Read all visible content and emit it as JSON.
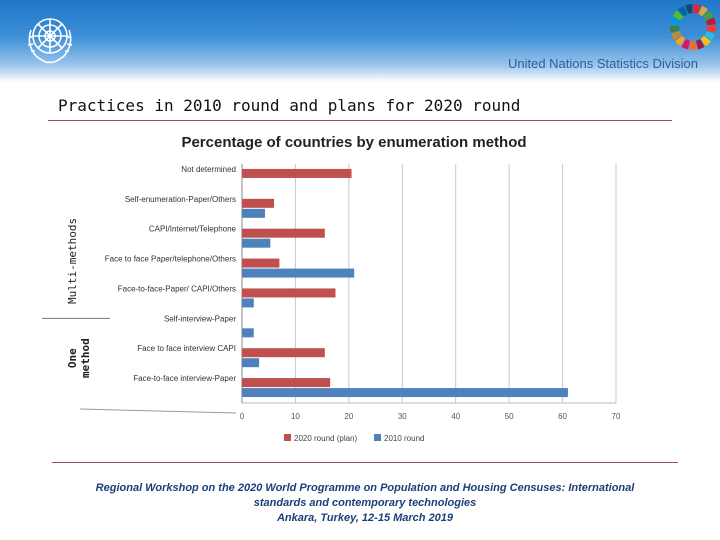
{
  "header": {
    "division": "United Nations Statistics Division",
    "un_logo": "un-emblem",
    "sdg_logo": "sdg-wheel",
    "sdg_colors": [
      "#e5243b",
      "#dda63a",
      "#4c9f38",
      "#c5192d",
      "#ff3a21",
      "#26bde2",
      "#fcc30b",
      "#a21942",
      "#fd6925",
      "#dd1367",
      "#fd9d24",
      "#bf8b2e",
      "#3f7e44",
      "#0a97d9",
      "#56c02b",
      "#00689d",
      "#19486a"
    ]
  },
  "page": {
    "title": "Practices in 2010 round and plans for 2020 round",
    "label_multi": "Multi-methods",
    "label_one_line1": "One",
    "label_one_line2": "method"
  },
  "chart_data": {
    "type": "bar",
    "orientation": "horizontal",
    "title": "Percentage of countries by enumeration method",
    "categories": [
      "Not determined",
      "Self-enumeration-Paper/Others",
      "CAPI/Internet/Telephone",
      "Face to face Paper/telephone/Others",
      "Face-to-face-Paper/ CAPI/Others",
      "Self-interview-Paper",
      "Face to face interview CAPI",
      "Face-to-face interview-Paper"
    ],
    "series": [
      {
        "name": "2020 round (plan)",
        "color": "#c0504d",
        "values": [
          20.5,
          6,
          15.5,
          7,
          17.5,
          0,
          15.5,
          16.5
        ]
      },
      {
        "name": "2010 round",
        "color": "#4f81bd",
        "values": [
          0,
          4.3,
          5.3,
          21,
          2.2,
          2.2,
          3.2,
          61
        ]
      }
    ],
    "xlim": [
      0,
      70
    ],
    "xticks": [
      0,
      10,
      20,
      30,
      40,
      50,
      60,
      70
    ],
    "grid": true,
    "legend": "bottom"
  },
  "footer": {
    "line1": "Regional Workshop on the 2020 World Programme on Population and Housing Censuses: International",
    "line2": "standards and contemporary technologies",
    "line3": "Ankara, Turkey, 12-15 March 2019"
  }
}
